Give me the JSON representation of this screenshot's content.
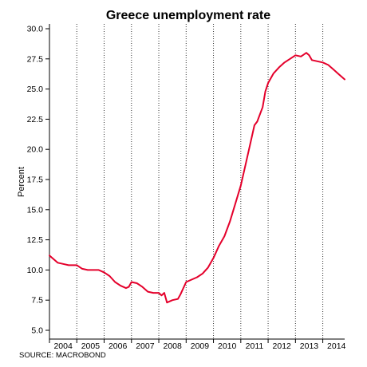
{
  "chart_data": {
    "type": "line",
    "title": "Greece unemployment rate",
    "ylabel": "Percent",
    "xlabel": "",
    "source": "SOURCE: MACROBOND",
    "ylim": [
      5.0,
      30.0
    ],
    "xlim": [
      2004.0,
      2014.8
    ],
    "y_ticks": [
      "5.0",
      "7.5",
      "10.0",
      "12.5",
      "15.0",
      "17.5",
      "20.0",
      "22.5",
      "25.0",
      "27.5",
      "30.0"
    ],
    "x_ticks": [
      "2004",
      "2005",
      "2006",
      "2007",
      "2008",
      "2009",
      "2010",
      "2011",
      "2012",
      "2013",
      "2014"
    ],
    "grid": "vertical dotted lines at year boundaries",
    "line_color": "#e4002b",
    "series": [
      {
        "x": [
          2004.0,
          2004.1,
          2004.3,
          2004.5,
          2004.7,
          2004.9,
          2005.0,
          2005.2,
          2005.4,
          2005.6,
          2005.8,
          2006.0,
          2006.2,
          2006.4,
          2006.6,
          2006.8,
          2006.9,
          2007.0,
          2007.2,
          2007.4,
          2007.6,
          2007.8,
          2008.0,
          2008.1,
          2008.2,
          2008.3,
          2008.5,
          2008.7,
          2008.8,
          2009.0,
          2009.2,
          2009.4,
          2009.6,
          2009.8,
          2010.0,
          2010.2,
          2010.4,
          2010.6,
          2010.8,
          2011.0,
          2011.2,
          2011.4,
          2011.5,
          2011.6,
          2011.8,
          2011.9,
          2012.0,
          2012.2,
          2012.4,
          2012.6,
          2012.8,
          2013.0,
          2013.2,
          2013.4,
          2013.5,
          2013.6,
          2013.8,
          2014.0,
          2014.2,
          2014.4,
          2014.6,
          2014.8
        ],
        "values": [
          11.2,
          11.0,
          10.6,
          10.5,
          10.4,
          10.4,
          10.4,
          10.1,
          10.0,
          10.0,
          10.0,
          9.8,
          9.5,
          9.0,
          8.7,
          8.5,
          8.6,
          9.0,
          8.9,
          8.6,
          8.2,
          8.1,
          8.1,
          7.9,
          8.1,
          7.3,
          7.5,
          7.6,
          8.0,
          9.0,
          9.2,
          9.4,
          9.7,
          10.2,
          11.0,
          12.0,
          12.8,
          14.0,
          15.5,
          17.0,
          19.0,
          21.0,
          22.0,
          22.3,
          23.5,
          24.8,
          25.5,
          26.3,
          26.8,
          27.2,
          27.5,
          27.8,
          27.7,
          28.0,
          27.8,
          27.4,
          27.3,
          27.2,
          27.0,
          26.6,
          26.2,
          25.8
        ]
      }
    ]
  }
}
